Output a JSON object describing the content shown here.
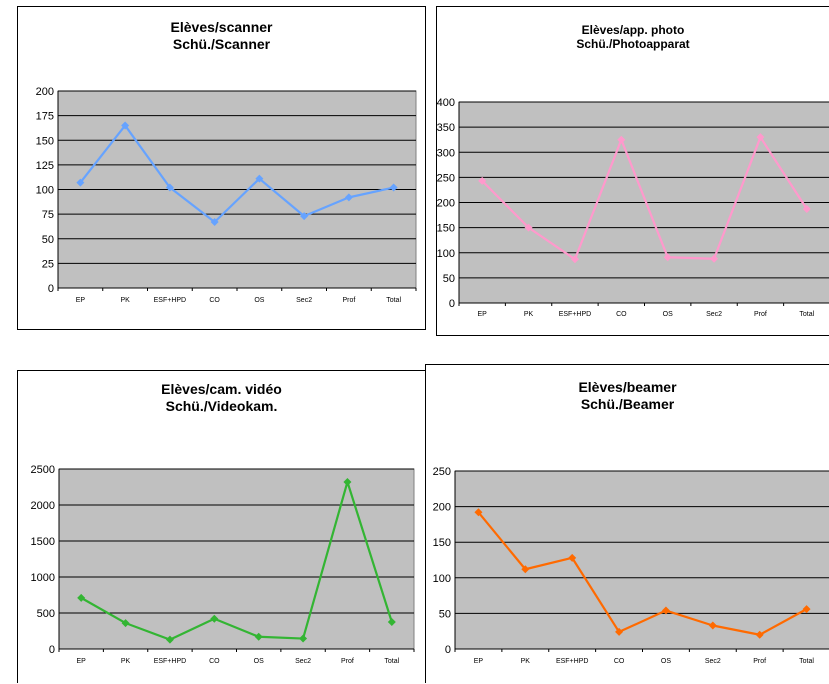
{
  "chart_data": [
    {
      "type": "line",
      "title": "Elèves/scanner",
      "subtitle": "Schü./Scanner",
      "categories": [
        "EP",
        "PK",
        "ESF+HPD",
        "CO",
        "OS",
        "Sec2",
        "Prof",
        "Total"
      ],
      "values": [
        107,
        165,
        102,
        67,
        111,
        73,
        92,
        102
      ],
      "yticks": [
        "0",
        "25",
        "50",
        "75",
        "100",
        "125",
        "150",
        "175",
        "200"
      ],
      "ylim": [
        0,
        200
      ],
      "color": "#66a3ff",
      "plot_bg": "#c0c0c0",
      "grid": true,
      "legend": "none"
    },
    {
      "type": "line",
      "title": "Elèves/app. photo",
      "subtitle": "Schü./Photoapparat",
      "categories": [
        "EP",
        "PK",
        "ESF+HPD",
        "CO",
        "OS",
        "Sec2",
        "Prof",
        "Total"
      ],
      "values": [
        243,
        150,
        87,
        325,
        91,
        88,
        330,
        187
      ],
      "yticks": [
        "0",
        "50",
        "100",
        "150",
        "200",
        "250",
        "300",
        "350",
        "400"
      ],
      "ylim": [
        0,
        400
      ],
      "color": "#ff99cc",
      "plot_bg": "#c0c0c0",
      "grid": true,
      "legend": "none"
    },
    {
      "type": "line",
      "title": "Elèves/cam. vidéo",
      "subtitle": "Schü./Videokam.",
      "categories": [
        "EP",
        "PK",
        "ESF+HPD",
        "CO",
        "OS",
        "Sec2",
        "Prof",
        "Total"
      ],
      "values": [
        710,
        360,
        130,
        420,
        170,
        145,
        2320,
        375
      ],
      "yticks": [
        "0",
        "500",
        "1000",
        "1500",
        "2000",
        "2500"
      ],
      "ylim": [
        0,
        2500
      ],
      "color": "#33b533",
      "plot_bg": "#c0c0c0",
      "grid": true,
      "legend": "none"
    },
    {
      "type": "line",
      "title": "Elèves/beamer",
      "subtitle": "Schü./Beamer",
      "categories": [
        "EP",
        "PK",
        "ESF+HPD",
        "CO",
        "OS",
        "Sec2",
        "Prof",
        "Total"
      ],
      "values": [
        192,
        112,
        128,
        24,
        54,
        33,
        20,
        56
      ],
      "yticks": [
        "0",
        "50",
        "100",
        "150",
        "200",
        "250"
      ],
      "ylim": [
        0,
        250
      ],
      "color": "#ff6a00",
      "plot_bg": "#c0c0c0",
      "grid": true,
      "legend": "none"
    }
  ]
}
